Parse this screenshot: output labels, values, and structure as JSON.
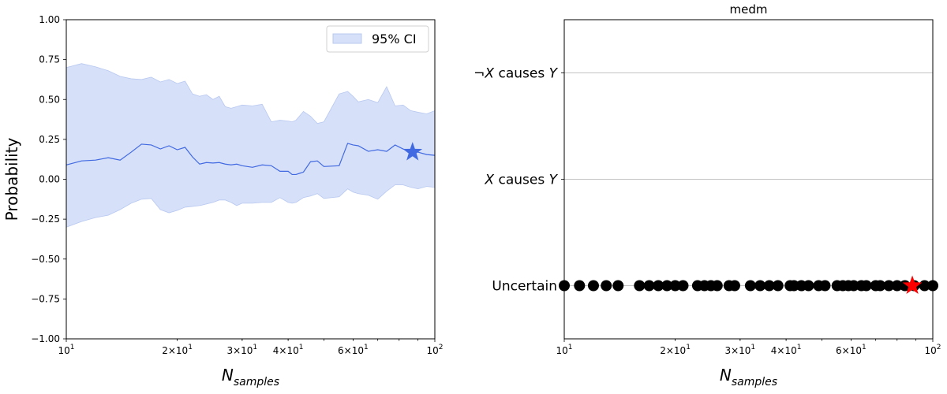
{
  "chart_data": [
    {
      "type": "line",
      "title": "",
      "xlabel": "N_samples",
      "ylabel": "Probability",
      "x_scale": "log",
      "xlim": [
        10,
        100
      ],
      "ylim": [
        -1.0,
        1.0
      ],
      "grid": false,
      "x_ticks": [
        {
          "value": 10,
          "base": "10",
          "exp": "1"
        },
        {
          "value": 20,
          "base": "2×10",
          "exp": "1"
        },
        {
          "value": 30,
          "base": "3×10",
          "exp": "1"
        },
        {
          "value": 40,
          "base": "4×10",
          "exp": "1"
        },
        {
          "value": 60,
          "base": "6×10",
          "exp": "1"
        },
        {
          "value": 100,
          "base": "10",
          "exp": "2"
        }
      ],
      "y_ticks": [
        "1.00",
        "0.75",
        "0.50",
        "0.25",
        "0.00",
        "−0.25",
        "−0.50",
        "−0.75",
        "−1.00"
      ],
      "y_tick_values": [
        1.0,
        0.75,
        0.5,
        0.25,
        0.0,
        -0.25,
        -0.5,
        -0.75,
        -1.0
      ],
      "legend": {
        "placement": "top-right",
        "entries": [
          "95% CI"
        ]
      },
      "series": [
        {
          "x": [
            10,
            11,
            12,
            13,
            14,
            15,
            16,
            17,
            18,
            19,
            20,
            21,
            22,
            23,
            24,
            25,
            26,
            27,
            28,
            29,
            30,
            32,
            34,
            36,
            38,
            40,
            41,
            42,
            44,
            46,
            48,
            50,
            55,
            58,
            60,
            62,
            66,
            70,
            74,
            78,
            82,
            86,
            90,
            95,
            100
          ],
          "mean": [
            0.09,
            0.115,
            0.12,
            0.135,
            0.12,
            0.17,
            0.22,
            0.215,
            0.19,
            0.21,
            0.185,
            0.2,
            0.14,
            0.095,
            0.105,
            0.102,
            0.105,
            0.095,
            0.09,
            0.095,
            0.085,
            0.075,
            0.09,
            0.085,
            0.05,
            0.05,
            0.03,
            0.03,
            0.045,
            0.11,
            0.115,
            0.08,
            0.085,
            0.225,
            0.215,
            0.21,
            0.175,
            0.185,
            0.175,
            0.215,
            0.19,
            0.175,
            0.17,
            0.155,
            0.15
          ],
          "lower": [
            -0.3,
            -0.265,
            -0.24,
            -0.225,
            -0.19,
            -0.15,
            -0.125,
            -0.12,
            -0.19,
            -0.21,
            -0.195,
            -0.175,
            -0.17,
            -0.165,
            -0.155,
            -0.145,
            -0.13,
            -0.13,
            -0.145,
            -0.165,
            -0.15,
            -0.15,
            -0.145,
            -0.145,
            -0.115,
            -0.145,
            -0.15,
            -0.145,
            -0.115,
            -0.105,
            -0.09,
            -0.12,
            -0.11,
            -0.06,
            -0.08,
            -0.09,
            -0.1,
            -0.125,
            -0.075,
            -0.035,
            -0.035,
            -0.05,
            -0.06,
            -0.045,
            -0.05
          ],
          "upper": [
            0.7,
            0.725,
            0.705,
            0.68,
            0.645,
            0.63,
            0.625,
            0.64,
            0.61,
            0.625,
            0.6,
            0.615,
            0.535,
            0.52,
            0.53,
            0.5,
            0.52,
            0.455,
            0.445,
            0.455,
            0.465,
            0.46,
            0.47,
            0.36,
            0.37,
            0.365,
            0.36,
            0.37,
            0.425,
            0.395,
            0.35,
            0.36,
            0.535,
            0.55,
            0.52,
            0.485,
            0.5,
            0.48,
            0.58,
            0.46,
            0.465,
            0.43,
            0.42,
            0.41,
            0.43
          ]
        }
      ],
      "marker": {
        "shape": "star",
        "x": 87,
        "y": 0.17,
        "color": "#4169e1"
      },
      "colors": {
        "line": "#4169e1",
        "band": "#d6e0f8",
        "band_edge": "#b8c8f0"
      }
    },
    {
      "type": "scatter",
      "title": "medm",
      "xlabel": "N_samples",
      "ylabel": "",
      "x_scale": "log",
      "xlim": [
        10,
        100
      ],
      "grid": true,
      "categories": [
        {
          "prefix": "¬",
          "var1": "X",
          "mid": " causes ",
          "var2": "Y",
          "plain": ""
        },
        {
          "prefix": "",
          "var1": "X",
          "mid": " causes ",
          "var2": "Y",
          "plain": ""
        },
        {
          "prefix": "",
          "var1": "",
          "mid": "",
          "var2": "",
          "plain": "Uncertain"
        }
      ],
      "x_ticks": [
        {
          "value": 10,
          "base": "10",
          "exp": "1"
        },
        {
          "value": 20,
          "base": "2×10",
          "exp": "1"
        },
        {
          "value": 30,
          "base": "3×10",
          "exp": "1"
        },
        {
          "value": 40,
          "base": "4×10",
          "exp": "1"
        },
        {
          "value": 60,
          "base": "6×10",
          "exp": "1"
        },
        {
          "value": 100,
          "base": "10",
          "exp": "2"
        }
      ],
      "points": {
        "category_index": 2,
        "x": [
          10,
          11,
          12,
          13,
          14,
          16,
          17,
          18,
          19,
          20,
          21,
          23,
          24,
          25,
          26,
          28,
          29,
          32,
          34,
          36,
          38,
          41,
          42,
          44,
          46,
          49,
          51,
          55,
          57,
          59,
          61,
          64,
          66,
          70,
          72,
          76,
          80,
          84,
          89,
          95,
          100
        ]
      },
      "marker": {
        "shape": "star",
        "x": 88,
        "category_index": 2,
        "color": "#ff0000"
      },
      "colors": {
        "points": "#000000",
        "grid": "#b0b0b0"
      }
    }
  ]
}
